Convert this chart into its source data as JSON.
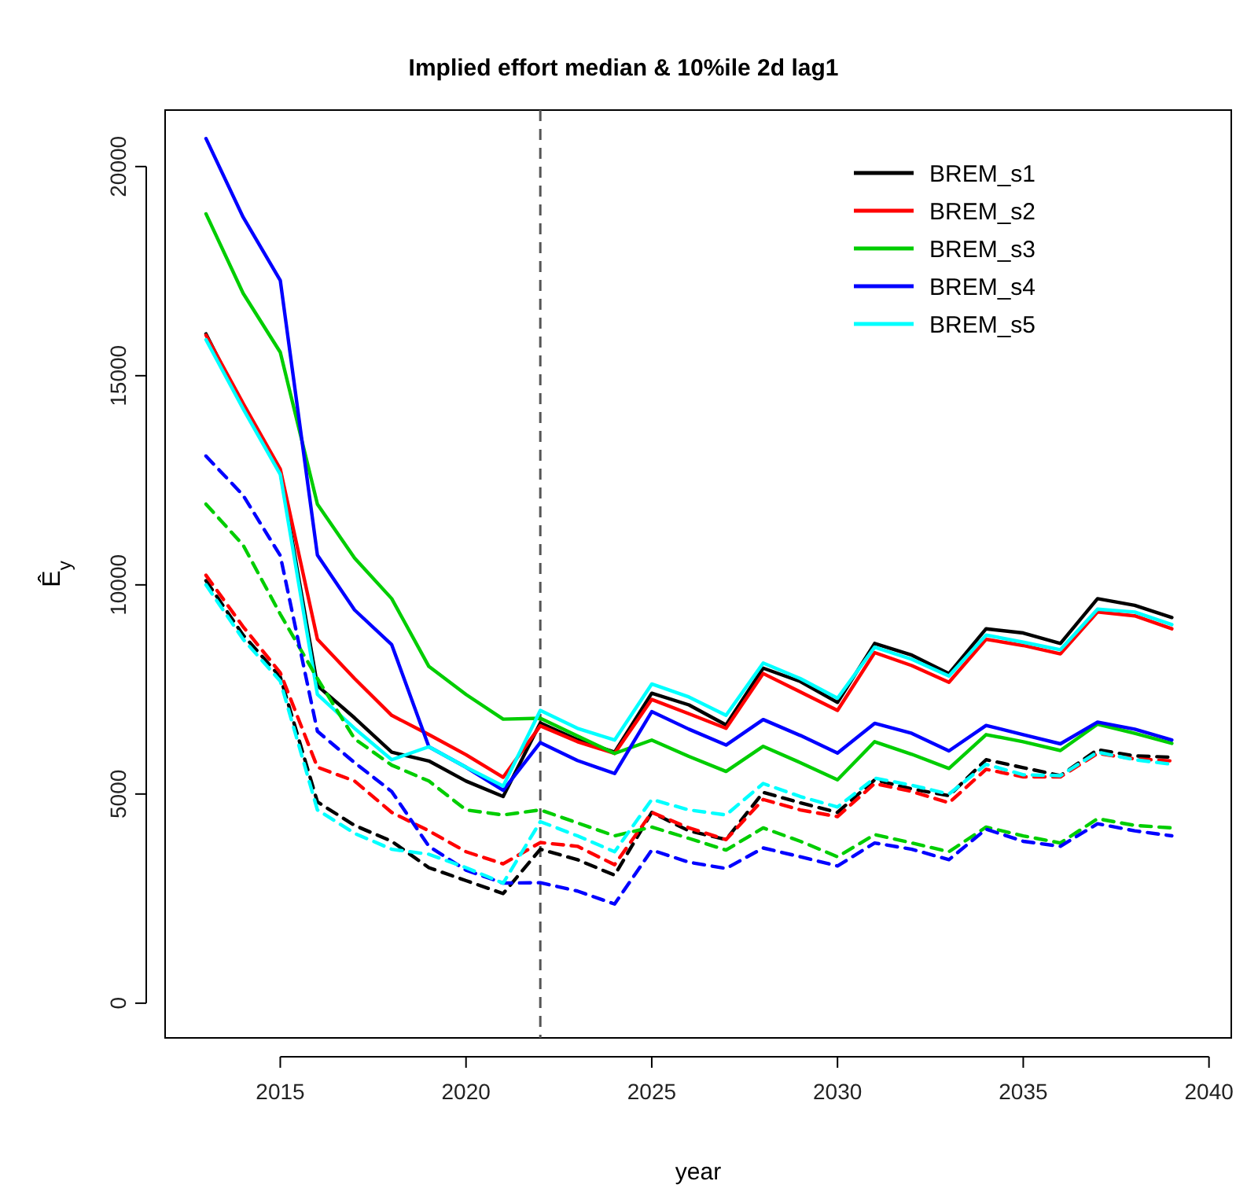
{
  "chart_data": {
    "type": "line",
    "title": "Implied effort median & 10%ile 2d lag1",
    "xlabel": "year",
    "ylabel": "Ê$_{y}$",
    "x": [
      2013,
      2014,
      2015,
      2016,
      2017,
      2018,
      2019,
      2020,
      2021,
      2022,
      2023,
      2024,
      2025,
      2026,
      2027,
      2028,
      2029,
      2030,
      2031,
      2032,
      2033,
      2034,
      2035,
      2036,
      2037,
      2038,
      2039
    ],
    "xlim": [
      2011.9,
      2040.6
    ],
    "xticks": [
      2015,
      2020,
      2025,
      2030,
      2035,
      2040
    ],
    "ylim": [
      -830,
      21350
    ],
    "yticks": [
      0,
      5000,
      10000,
      15000,
      20000
    ],
    "grid": false,
    "legend": "top right",
    "marker": "none",
    "line_style": "solid",
    "ref_lines": [
      {
        "axis": "x",
        "value": 2022,
        "color": "#555555",
        "line_style": "dashed"
      }
    ],
    "series": [
      {
        "name": "BREM_s1",
        "color": "#000000",
        "values": [
          16000,
          14250,
          12700,
          7590,
          6820,
          6000,
          5790,
          5310,
          4940,
          6700,
          6300,
          6000,
          7410,
          7130,
          6650,
          8010,
          7690,
          7190,
          8600,
          8320,
          7880,
          8950,
          8850,
          8600,
          9670,
          9510,
          9220
        ]
      },
      {
        "name": "BREM_s2",
        "color": "#ff0000",
        "values": [
          15970,
          14340,
          12770,
          8700,
          7760,
          6880,
          6420,
          5940,
          5400,
          6630,
          6250,
          5970,
          7260,
          6920,
          6570,
          7880,
          7440,
          7000,
          8380,
          8070,
          7670,
          8700,
          8550,
          8350,
          9350,
          9260,
          8950
        ]
      },
      {
        "name": "BREM_s3",
        "color": "#00cd00",
        "values": [
          18870,
          16970,
          15560,
          11930,
          10640,
          9670,
          8050,
          7380,
          6790,
          6810,
          6390,
          5970,
          6290,
          5900,
          5540,
          6140,
          5750,
          5340,
          6250,
          5950,
          5610,
          6420,
          6250,
          6040,
          6670,
          6450,
          6210
        ]
      },
      {
        "name": "BREM_s4",
        "color": "#0000ff",
        "values": [
          20670,
          18790,
          17280,
          10710,
          9400,
          8570,
          6130,
          5640,
          5090,
          6230,
          5800,
          5490,
          6970,
          6550,
          6170,
          6780,
          6400,
          5980,
          6690,
          6450,
          6030,
          6640,
          6420,
          6200,
          6720,
          6550,
          6290
        ]
      },
      {
        "name": "BREM_s5",
        "color": "#00ffff",
        "values": [
          15860,
          14210,
          12640,
          7380,
          6570,
          5820,
          6130,
          5640,
          5190,
          7000,
          6570,
          6290,
          7630,
          7320,
          6880,
          8130,
          7760,
          7290,
          8510,
          8220,
          7820,
          8800,
          8630,
          8450,
          9420,
          9350,
          9050
        ]
      },
      {
        "color": "#000000",
        "line_style": "dashed",
        "values": [
          10100,
          8800,
          7800,
          4810,
          4250,
          3870,
          3240,
          2930,
          2620,
          3680,
          3430,
          3060,
          4560,
          4120,
          3910,
          5040,
          4790,
          4560,
          5340,
          5120,
          4960,
          5820,
          5630,
          5440,
          6060,
          5910,
          5880
        ]
      },
      {
        "color": "#ff0000",
        "line_style": "dashed",
        "values": [
          10230,
          9000,
          7900,
          5640,
          5310,
          4560,
          4120,
          3620,
          3330,
          3840,
          3750,
          3310,
          4560,
          4190,
          3910,
          4870,
          4620,
          4460,
          5250,
          5060,
          4790,
          5590,
          5410,
          5410,
          5970,
          5840,
          5790
        ]
      },
      {
        "color": "#00cd00",
        "line_style": "dashed",
        "values": [
          11930,
          10950,
          9300,
          7760,
          6320,
          5690,
          5310,
          4620,
          4500,
          4620,
          4310,
          4000,
          4210,
          3940,
          3660,
          4190,
          3870,
          3500,
          4030,
          3830,
          3620,
          4210,
          4000,
          3830,
          4410,
          4250,
          4190
        ]
      },
      {
        "color": "#0000ff",
        "line_style": "dashed",
        "values": [
          13080,
          12140,
          10700,
          6500,
          5750,
          5060,
          3750,
          3180,
          2870,
          2880,
          2680,
          2370,
          3660,
          3370,
          3220,
          3710,
          3500,
          3280,
          3830,
          3680,
          3430,
          4160,
          3870,
          3750,
          4290,
          4120,
          4000
        ]
      },
      {
        "color": "#00ffff",
        "line_style": "dashed",
        "values": [
          10000,
          8700,
          7700,
          4620,
          4060,
          3680,
          3560,
          3240,
          2870,
          4340,
          4000,
          3620,
          4870,
          4620,
          4500,
          5250,
          4940,
          4690,
          5380,
          5210,
          5000,
          5710,
          5460,
          5440,
          6000,
          5820,
          5710
        ]
      }
    ]
  }
}
